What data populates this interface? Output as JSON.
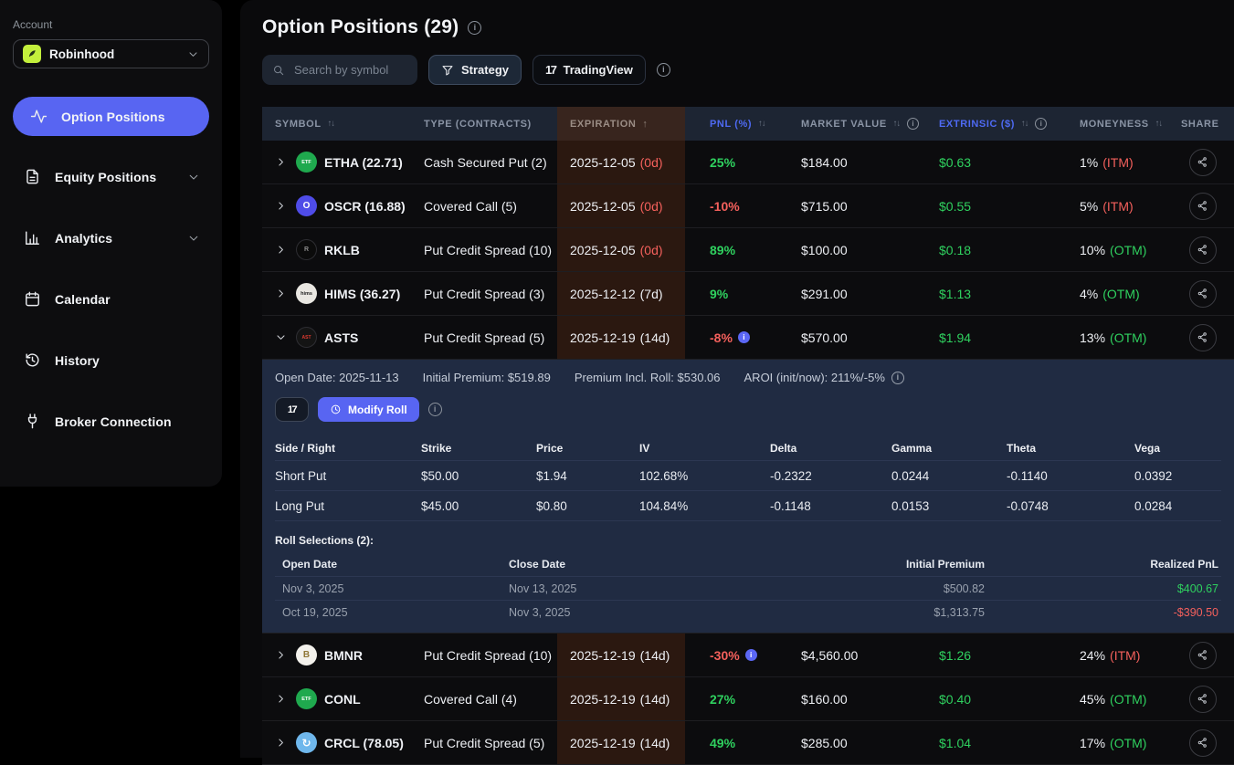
{
  "colors": {
    "accent_blue": "#5865f2",
    "column_link_blue": "#4e6af3",
    "positive_green": "#2fd15f",
    "negative_red": "#f4605c",
    "robinhood_green": "#c3ef3c",
    "expiration_highlight": "#2b1810",
    "panel_navy": "#202b42"
  },
  "sidebar": {
    "account_label": "Account",
    "account_selector": {
      "name": "Robinhood",
      "icon": "robinhood-feather-icon"
    },
    "items": [
      {
        "id": "option-positions",
        "label": "Option Positions",
        "icon": "pulse-icon",
        "active": true,
        "chevron": false
      },
      {
        "id": "equity-positions",
        "label": "Equity Positions",
        "icon": "ledger-icon",
        "active": false,
        "chevron": true
      },
      {
        "id": "analytics",
        "label": "Analytics",
        "icon": "bar-chart-icon",
        "active": false,
        "chevron": true
      },
      {
        "id": "calendar",
        "label": "Calendar",
        "icon": "calendar-icon",
        "active": false,
        "chevron": false
      },
      {
        "id": "history",
        "label": "History",
        "icon": "history-clock-icon",
        "active": false,
        "chevron": false
      },
      {
        "id": "broker-connection",
        "label": "Broker Connection",
        "icon": "plug-icon",
        "active": false,
        "chevron": false
      }
    ]
  },
  "header": {
    "title": "Option Positions (29)",
    "search_placeholder": "Search by symbol",
    "strategy_button": "Strategy",
    "tradingview_button": "TradingView"
  },
  "table": {
    "columns": [
      {
        "label": "SYMBOL"
      },
      {
        "label": "TYPE (CONTRACTS)"
      },
      {
        "label": "EXPIRATION"
      },
      {
        "label": "PNL (%)"
      },
      {
        "label": "MARKET VALUE"
      },
      {
        "label": "EXTRINSIC ($)"
      },
      {
        "label": "MONEYNESS"
      },
      {
        "label": "SHARE"
      }
    ],
    "rows": [
      {
        "symbol": "ETHA (22.71)",
        "icon": {
          "text": "ETF",
          "bg": "#1fa94e",
          "fg": "#ffffff",
          "fs": 5.5
        },
        "type": "Cash Secured Put (2)",
        "expiration": "2025-12-05",
        "days": "(0d)",
        "days_urgent": true,
        "pnl": "25%",
        "pnl_positive": true,
        "pnl_info": false,
        "market_value": "$184.00",
        "extrinsic": "$0.63",
        "moneyness": "1%",
        "moneyness_tag": "(ITM)",
        "itm": true,
        "expanded": false
      },
      {
        "symbol": "OSCR (16.88)",
        "icon": {
          "text": "O",
          "bg": "#4f4ce8",
          "fg": "#ffffff",
          "fs": 10
        },
        "type": "Covered Call (5)",
        "expiration": "2025-12-05",
        "days": "(0d)",
        "days_urgent": true,
        "pnl": "-10%",
        "pnl_positive": false,
        "pnl_info": false,
        "market_value": "$715.00",
        "extrinsic": "$0.55",
        "moneyness": "5%",
        "moneyness_tag": "(ITM)",
        "itm": true,
        "expanded": false
      },
      {
        "symbol": "RKLB",
        "icon": {
          "text": "R",
          "bg": "#0b0b0b",
          "fg": "#8a8a8a",
          "fs": 7,
          "bd": "#2e2e33"
        },
        "type": "Put Credit Spread (10)",
        "expiration": "2025-12-05",
        "days": "(0d)",
        "days_urgent": true,
        "pnl": "89%",
        "pnl_positive": true,
        "pnl_info": false,
        "market_value": "$100.00",
        "extrinsic": "$0.18",
        "moneyness": "10%",
        "moneyness_tag": "(OTM)",
        "itm": false,
        "expanded": false
      },
      {
        "symbol": "HIMS (36.27)",
        "icon": {
          "text": "hims",
          "bg": "#e9e7e2",
          "fg": "#222222",
          "fs": 5.5
        },
        "type": "Put Credit Spread (3)",
        "expiration": "2025-12-12",
        "days": "(7d)",
        "days_urgent": false,
        "pnl": "9%",
        "pnl_positive": true,
        "pnl_info": false,
        "market_value": "$291.00",
        "extrinsic": "$1.13",
        "moneyness": "4%",
        "moneyness_tag": "(OTM)",
        "itm": false,
        "expanded": false
      },
      {
        "symbol": "ASTS",
        "icon": {
          "text": "AST",
          "bg": "#141414",
          "fg": "#e03a2f",
          "fs": 5,
          "bd": "#2e2e33"
        },
        "type": "Put Credit Spread (5)",
        "expiration": "2025-12-19",
        "days": "(14d)",
        "days_urgent": false,
        "pnl": "-8%",
        "pnl_positive": false,
        "pnl_info": true,
        "market_value": "$570.00",
        "extrinsic": "$1.94",
        "moneyness": "13%",
        "moneyness_tag": "(OTM)",
        "itm": false,
        "expanded": true
      },
      {
        "symbol": "BMNR",
        "icon": {
          "text": "B",
          "bg": "#f3f1ec",
          "fg": "#8f7636",
          "fs": 10
        },
        "type": "Put Credit Spread (10)",
        "expiration": "2025-12-19",
        "days": "(14d)",
        "days_urgent": false,
        "pnl": "-30%",
        "pnl_positive": false,
        "pnl_info": true,
        "market_value": "$4,560.00",
        "extrinsic": "$1.26",
        "moneyness": "24%",
        "moneyness_tag": "(ITM)",
        "itm": true,
        "expanded": false
      },
      {
        "symbol": "CONL",
        "icon": {
          "text": "ETF",
          "bg": "#1fa94e",
          "fg": "#ffffff",
          "fs": 5.5
        },
        "type": "Covered Call (4)",
        "expiration": "2025-12-19",
        "days": "(14d)",
        "days_urgent": false,
        "pnl": "27%",
        "pnl_positive": true,
        "pnl_info": false,
        "market_value": "$160.00",
        "extrinsic": "$0.40",
        "moneyness": "45%",
        "moneyness_tag": "(OTM)",
        "itm": false,
        "expanded": false
      },
      {
        "symbol": "CRCL (78.05)",
        "icon": {
          "text": "↻",
          "bg": "#6fb7ec",
          "fg": "#ffffff",
          "fs": 12
        },
        "type": "Put Credit Spread (5)",
        "expiration": "2025-12-19",
        "days": "(14d)",
        "days_urgent": false,
        "pnl": "49%",
        "pnl_positive": true,
        "pnl_info": false,
        "market_value": "$285.00",
        "extrinsic": "$1.04",
        "moneyness": "17%",
        "moneyness_tag": "(OTM)",
        "itm": false,
        "expanded": false
      }
    ]
  },
  "expanded_position": {
    "symbol": "ASTS",
    "meta": [
      {
        "label": "Open Date:",
        "value": "2025-11-13",
        "info": false
      },
      {
        "label": "Initial Premium:",
        "value": "$519.89",
        "info": false
      },
      {
        "label": "Premium Incl. Roll:",
        "value": "$530.06",
        "info": false
      },
      {
        "label": "AROI (init/now):",
        "value": "211%/-5%",
        "info": true
      }
    ],
    "modify_roll_button": "Modify Roll",
    "legs": {
      "columns": [
        "Side / Right",
        "Strike",
        "Price",
        "IV",
        "Delta",
        "Gamma",
        "Theta",
        "Vega"
      ],
      "rows": [
        [
          "Short Put",
          "$50.00",
          "$1.94",
          "102.68%",
          "-0.2322",
          "0.0244",
          "-0.1140",
          "0.0392"
        ],
        [
          "Long Put",
          "$45.00",
          "$0.80",
          "104.84%",
          "-0.1148",
          "0.0153",
          "-0.0748",
          "0.0284"
        ]
      ]
    },
    "rolls": {
      "title": "Roll Selections (2):",
      "columns": [
        "Open Date",
        "Close Date",
        "Initial Premium",
        "Realized PnL"
      ],
      "rows": [
        {
          "open_date": "Nov 3, 2025",
          "close_date": "Nov 13, 2025",
          "initial_premium": "$500.82",
          "realized_pnl": "$400.67",
          "positive": true
        },
        {
          "open_date": "Oct 19, 2025",
          "close_date": "Nov 3, 2025",
          "initial_premium": "$1,313.75",
          "realized_pnl": "-$390.50",
          "positive": false
        }
      ]
    }
  }
}
